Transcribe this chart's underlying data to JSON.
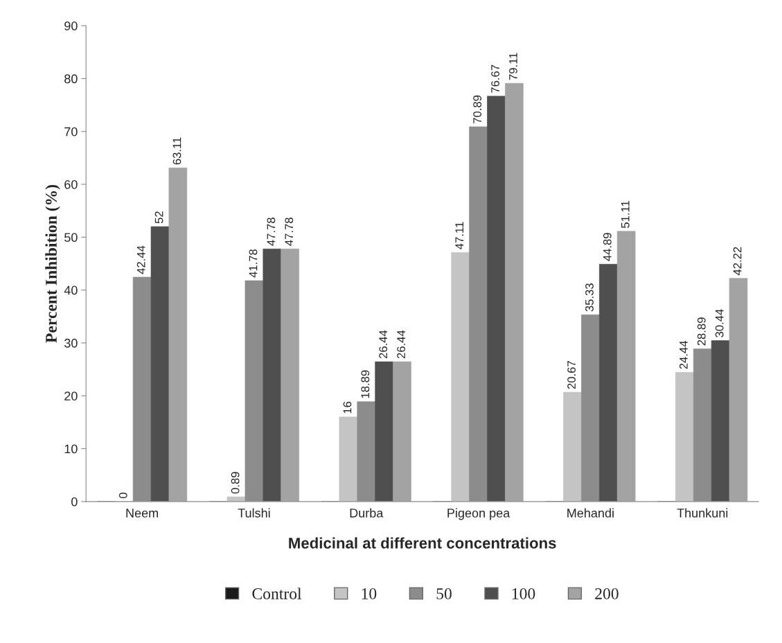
{
  "chart_data": {
    "type": "bar",
    "xlabel": "Medicinal at different concentrations",
    "ylabel": "Percent Inhibition (%)",
    "categories": [
      "Neem",
      "Tulshi",
      "Durba",
      "Pigeon pea",
      "Mehandi",
      "Thunkuni"
    ],
    "series": [
      {
        "name": "Control",
        "color": "#1a1a1a",
        "values": [
          0,
          0,
          0,
          0,
          0,
          0
        ],
        "value_labels": [
          null,
          null,
          null,
          null,
          null,
          null
        ]
      },
      {
        "name": "10",
        "color": "#c4c4c4",
        "values": [
          0,
          0.89,
          16,
          47.11,
          20.67,
          24.44
        ],
        "value_labels": [
          "0",
          "0.89",
          "16",
          "47.11",
          "20.67",
          "24.44"
        ]
      },
      {
        "name": "50",
        "color": "#8c8c8c",
        "values": [
          42.44,
          41.78,
          18.89,
          70.89,
          35.33,
          28.89
        ],
        "value_labels": [
          "42.44",
          "41.78",
          "18.89",
          "70.89",
          "35.33",
          "28.89"
        ]
      },
      {
        "name": "100",
        "color": "#4f4f4f",
        "values": [
          52,
          47.78,
          26.44,
          76.67,
          44.89,
          30.44
        ],
        "value_labels": [
          "52",
          "47.78",
          "26.44",
          "76.67",
          "44.89",
          "30.44"
        ]
      },
      {
        "name": "200",
        "color": "#a3a3a3",
        "values": [
          63.11,
          47.78,
          26.44,
          79.11,
          51.11,
          42.22
        ],
        "value_labels": [
          "63.11",
          "47.78",
          "26.44",
          "79.11",
          "51.11",
          "42.22"
        ]
      }
    ],
    "ylim": [
      0,
      90
    ],
    "yticks": [
      0,
      10,
      20,
      30,
      40,
      50,
      60,
      70,
      80,
      90
    ],
    "grid": false,
    "legend": "bottom"
  }
}
